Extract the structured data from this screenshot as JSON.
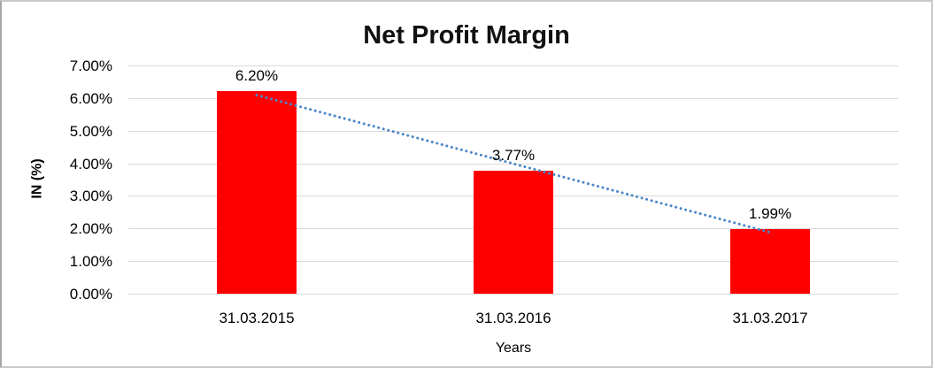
{
  "chart_data": {
    "type": "bar",
    "title": "Net Profit Margin",
    "xlabel": "Years",
    "ylabel": "IN (%)",
    "categories": [
      "31.03.2015",
      "31.03.2016",
      "31.03.2017"
    ],
    "values": [
      6.2,
      3.77,
      1.99
    ],
    "data_labels": [
      "6.20%",
      "3.77%",
      "1.99%"
    ],
    "ylim": [
      0,
      7
    ],
    "ytick_step": 1,
    "ytick_labels": [
      "0.00%",
      "1.00%",
      "2.00%",
      "3.00%",
      "4.00%",
      "5.00%",
      "6.00%",
      "7.00%"
    ],
    "grid": true,
    "legend": "none",
    "colors": {
      "bar": "#ff0000",
      "trendline": "#4a86c8",
      "gridline": "#d9d9d9",
      "text": "#000000",
      "title": "#111111"
    },
    "trendline": {
      "type": "linear",
      "style": "dotted"
    }
  }
}
